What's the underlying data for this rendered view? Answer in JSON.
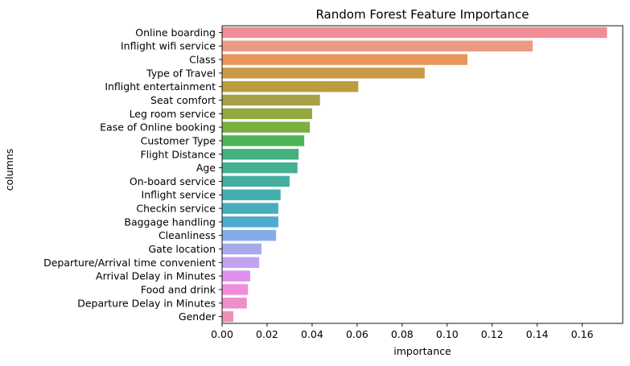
{
  "chart_data": {
    "type": "bar",
    "orientation": "horizontal",
    "title": "Random Forest Feature Importance",
    "xlabel": "importance",
    "ylabel": "columns",
    "xlim": [
      0,
      0.178
    ],
    "xticks": [
      0.0,
      0.02,
      0.04,
      0.06,
      0.08,
      0.1,
      0.12,
      0.14,
      0.16
    ],
    "xtick_labels": [
      "0.00",
      "0.02",
      "0.04",
      "0.06",
      "0.08",
      "0.10",
      "0.12",
      "0.14",
      "0.16"
    ],
    "grid": false,
    "categories": [
      "Online boarding",
      "Inflight wifi service",
      "Class",
      "Type of Travel",
      "Inflight entertainment",
      "Seat comfort",
      "Leg room service",
      "Ease of Online booking",
      "Customer Type",
      "Flight Distance",
      "Age",
      "On-board service",
      "Inflight service",
      "Checkin service",
      "Baggage handling",
      "Cleanliness",
      "Gate location",
      "Departure/Arrival time convenient",
      "Arrival Delay in Minutes",
      "Food and drink",
      "Departure Delay in Minutes",
      "Gender"
    ],
    "values": [
      0.171,
      0.138,
      0.109,
      0.09,
      0.0605,
      0.0435,
      0.04,
      0.039,
      0.0365,
      0.034,
      0.0335,
      0.03,
      0.026,
      0.025,
      0.025,
      0.024,
      0.0175,
      0.0165,
      0.0125,
      0.0115,
      0.011,
      0.005
    ],
    "colors": [
      "#f08d96",
      "#ec9a84",
      "#e8955c",
      "#c99a48",
      "#bb9d3f",
      "#a6a046",
      "#93a83f",
      "#79b140",
      "#4db457",
      "#43b17e",
      "#45b092",
      "#43ada0",
      "#45aeae",
      "#47adbd",
      "#4fabcd",
      "#81acea",
      "#a8aaee",
      "#c1a3f0",
      "#df90ed",
      "#f08ed9",
      "#ec8fcb",
      "#ec90b8"
    ]
  }
}
